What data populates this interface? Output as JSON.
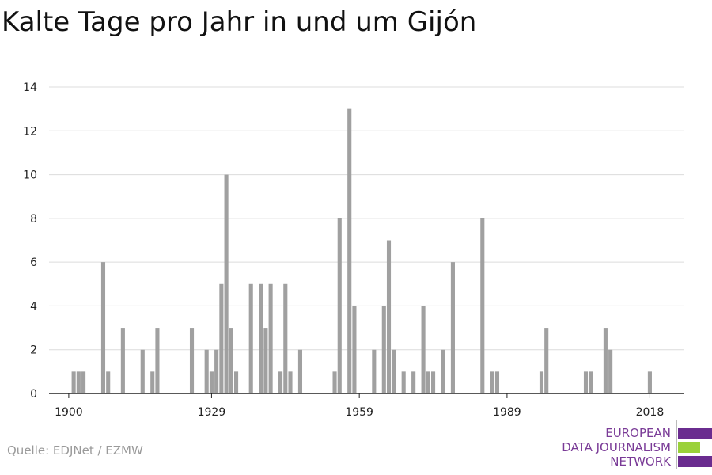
{
  "title": "Kalte Tage pro Jahr in und um Gijón",
  "source": "Quelle: EDJNet / EZMW",
  "logo": {
    "lines": [
      "EUROPEAN",
      "DATA JOURNALISM",
      "NETWORK"
    ],
    "colors": {
      "purple": "#6a2c8f",
      "green": "#9ad13a"
    }
  },
  "chart_data": {
    "type": "bar",
    "title": "Kalte Tage pro Jahr in und um Gijón",
    "xlabel": "",
    "ylabel": "",
    "ylim": [
      0,
      14
    ],
    "xlim": [
      1896,
      2025
    ],
    "yticks": [
      0,
      2,
      4,
      6,
      8,
      10,
      12,
      14
    ],
    "xticks": [
      1900,
      1929,
      1959,
      1989,
      2018
    ],
    "grid": true,
    "bar_color": "#a0a0a0",
    "x": [
      1901,
      1902,
      1903,
      1907,
      1908,
      1911,
      1915,
      1917,
      1918,
      1925,
      1928,
      1929,
      1930,
      1931,
      1932,
      1933,
      1934,
      1937,
      1939,
      1940,
      1941,
      1943,
      1944,
      1945,
      1947,
      1954,
      1955,
      1957,
      1958,
      1962,
      1964,
      1965,
      1966,
      1968,
      1970,
      1972,
      1973,
      1974,
      1976,
      1978,
      1984,
      1986,
      1987,
      1996,
      1997,
      2005,
      2006,
      2009,
      2010,
      2018
    ],
    "values": [
      1,
      1,
      1,
      6,
      1,
      3,
      2,
      1,
      3,
      3,
      2,
      1,
      2,
      5,
      10,
      3,
      1,
      5,
      5,
      3,
      5,
      1,
      5,
      1,
      2,
      1,
      8,
      13,
      4,
      2,
      4,
      7,
      2,
      1,
      1,
      4,
      1,
      1,
      2,
      6,
      8,
      1,
      1,
      1,
      3,
      1,
      1,
      3,
      2,
      1
    ]
  }
}
